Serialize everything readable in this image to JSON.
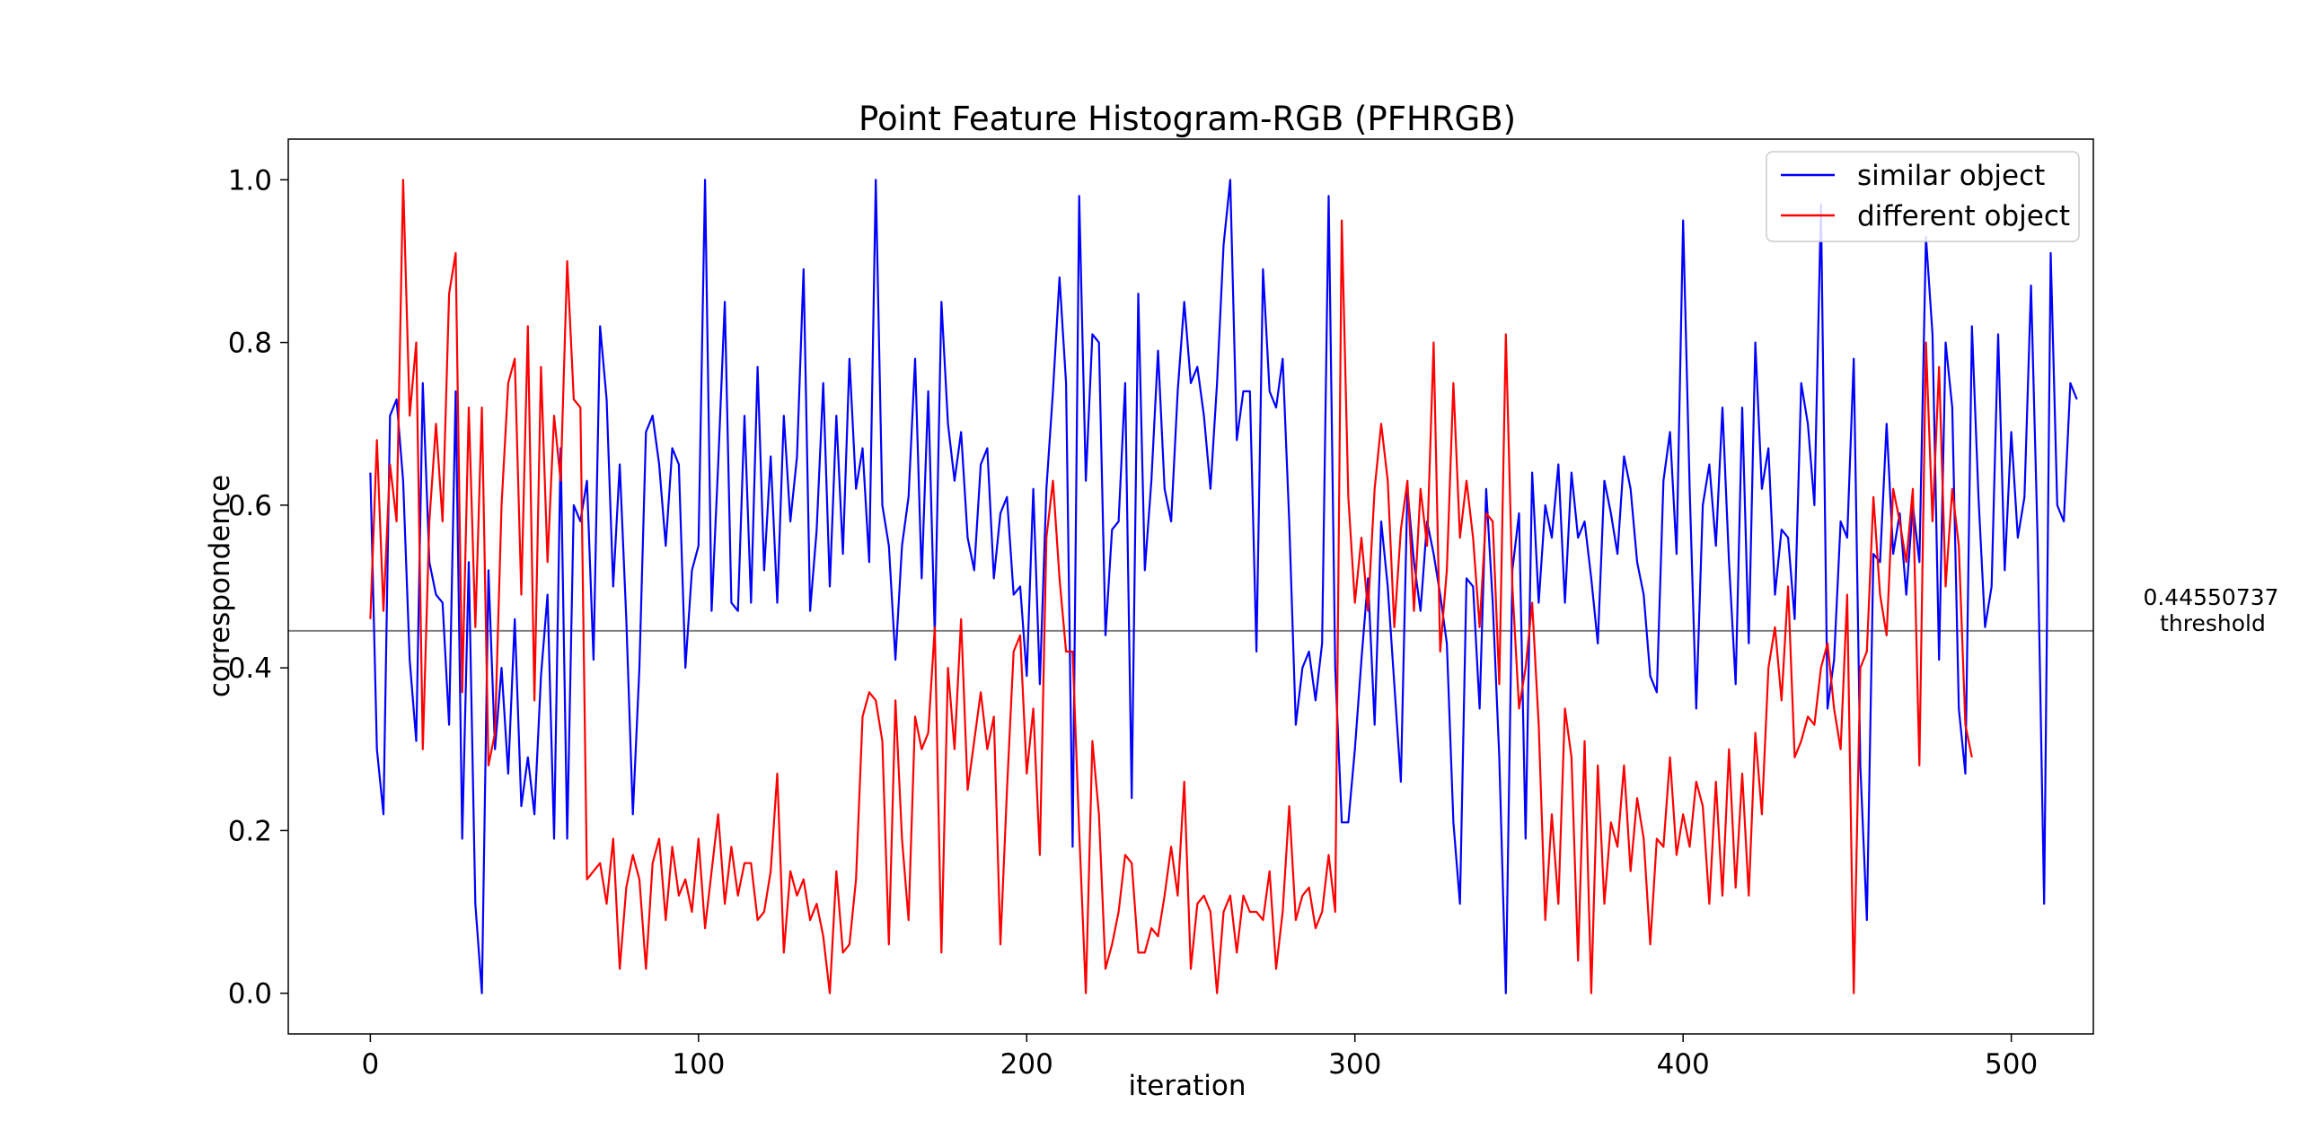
{
  "chart_data": {
    "type": "line",
    "title": "Point Feature Histogram-RGB (PFHRGB)",
    "xlabel": "iteration",
    "ylabel": "correspondence",
    "xlim": [
      -25,
      525
    ],
    "ylim": [
      -0.05,
      1.05
    ],
    "xticks": [
      0,
      100,
      200,
      300,
      400,
      500
    ],
    "yticks": [
      0.0,
      0.2,
      0.4,
      0.6,
      0.8,
      1.0
    ],
    "xtick_labels": [
      "0",
      "100",
      "200",
      "300",
      "400",
      "500"
    ],
    "ytick_labels": [
      "0.0",
      "0.2",
      "0.4",
      "0.6",
      "0.8",
      "1.0"
    ],
    "grid": false,
    "legend": "top-right",
    "threshold": {
      "value": 0.44550737,
      "value_label": "0.44550737",
      "label": "threshold",
      "color": "#808080"
    },
    "series": [
      {
        "name": "similar object",
        "color": "#0000ff",
        "x_start": 0,
        "x_step": 2,
        "values": [
          0.64,
          0.3,
          0.22,
          0.71,
          0.73,
          0.63,
          0.41,
          0.31,
          0.75,
          0.53,
          0.49,
          0.48,
          0.33,
          0.74,
          0.19,
          0.53,
          0.11,
          0.0,
          0.52,
          0.3,
          0.4,
          0.27,
          0.46,
          0.23,
          0.29,
          0.22,
          0.39,
          0.49,
          0.19,
          0.67,
          0.19,
          0.6,
          0.58,
          0.63,
          0.41,
          0.82,
          0.73,
          0.5,
          0.65,
          0.46,
          0.22,
          0.4,
          0.69,
          0.71,
          0.65,
          0.55,
          0.67,
          0.65,
          0.4,
          0.52,
          0.55,
          1.0,
          0.47,
          0.65,
          0.85,
          0.48,
          0.47,
          0.71,
          0.48,
          0.77,
          0.52,
          0.66,
          0.48,
          0.71,
          0.58,
          0.66,
          0.89,
          0.47,
          0.57,
          0.75,
          0.5,
          0.71,
          0.54,
          0.78,
          0.62,
          0.67,
          0.53,
          1.0,
          0.6,
          0.55,
          0.41,
          0.55,
          0.61,
          0.78,
          0.51,
          0.74,
          0.44,
          0.85,
          0.7,
          0.63,
          0.69,
          0.56,
          0.52,
          0.65,
          0.67,
          0.51,
          0.59,
          0.61,
          0.49,
          0.5,
          0.39,
          0.62,
          0.38,
          0.62,
          0.74,
          0.88,
          0.75,
          0.18,
          0.98,
          0.63,
          0.81,
          0.8,
          0.44,
          0.57,
          0.58,
          0.75,
          0.24,
          0.86,
          0.52,
          0.63,
          0.79,
          0.62,
          0.58,
          0.74,
          0.85,
          0.75,
          0.77,
          0.71,
          0.62,
          0.75,
          0.92,
          1.0,
          0.68,
          0.74,
          0.74,
          0.42,
          0.89,
          0.74,
          0.72,
          0.78,
          0.58,
          0.33,
          0.4,
          0.42,
          0.36,
          0.43,
          0.98,
          0.4,
          0.21,
          0.21,
          0.3,
          0.41,
          0.51,
          0.33,
          0.58,
          0.5,
          0.38,
          0.26,
          0.62,
          0.53,
          0.47,
          0.58,
          0.54,
          0.49,
          0.43,
          0.21,
          0.11,
          0.51,
          0.5,
          0.35,
          0.62,
          0.48,
          0.29,
          0.0,
          0.52,
          0.59,
          0.19,
          0.64,
          0.48,
          0.6,
          0.56,
          0.65,
          0.48,
          0.64,
          0.56,
          0.58,
          0.51,
          0.43,
          0.63,
          0.59,
          0.54,
          0.66,
          0.62,
          0.53,
          0.49,
          0.39,
          0.37,
          0.63,
          0.69,
          0.54,
          0.95,
          0.62,
          0.35,
          0.6,
          0.65,
          0.55,
          0.72,
          0.53,
          0.38,
          0.72,
          0.43,
          0.8,
          0.62,
          0.67,
          0.49,
          0.57,
          0.56,
          0.46,
          0.75,
          0.7,
          0.6,
          0.97,
          0.35,
          0.41,
          0.58,
          0.56,
          0.78,
          0.28,
          0.09,
          0.54,
          0.53,
          0.7,
          0.54,
          0.59,
          0.49,
          0.6,
          0.53,
          0.93,
          0.81,
          0.41,
          0.8,
          0.72,
          0.35,
          0.27,
          0.82,
          0.61,
          0.45,
          0.5,
          0.81,
          0.52,
          0.69,
          0.56,
          0.61,
          0.87,
          0.56,
          0.11,
          0.91,
          0.6,
          0.58,
          0.75,
          0.73
        ]
      },
      {
        "name": "different object",
        "color": "#ff0000",
        "x_start": 0,
        "x_step": 2,
        "values": [
          0.46,
          0.68,
          0.47,
          0.65,
          0.58,
          1.0,
          0.71,
          0.8,
          0.3,
          0.58,
          0.7,
          0.58,
          0.86,
          0.91,
          0.37,
          0.72,
          0.45,
          0.72,
          0.28,
          0.32,
          0.6,
          0.75,
          0.78,
          0.49,
          0.82,
          0.36,
          0.77,
          0.53,
          0.71,
          0.63,
          0.9,
          0.73,
          0.72,
          0.14,
          0.15,
          0.16,
          0.11,
          0.19,
          0.03,
          0.13,
          0.17,
          0.14,
          0.03,
          0.16,
          0.19,
          0.09,
          0.18,
          0.12,
          0.14,
          0.1,
          0.19,
          0.08,
          0.15,
          0.22,
          0.11,
          0.18,
          0.12,
          0.16,
          0.16,
          0.09,
          0.1,
          0.15,
          0.27,
          0.05,
          0.15,
          0.12,
          0.14,
          0.09,
          0.11,
          0.07,
          0.0,
          0.15,
          0.05,
          0.06,
          0.14,
          0.34,
          0.37,
          0.36,
          0.31,
          0.06,
          0.36,
          0.19,
          0.09,
          0.34,
          0.3,
          0.32,
          0.45,
          0.05,
          0.4,
          0.3,
          0.46,
          0.25,
          0.31,
          0.37,
          0.3,
          0.34,
          0.06,
          0.25,
          0.42,
          0.44,
          0.27,
          0.35,
          0.17,
          0.56,
          0.63,
          0.51,
          0.42,
          0.42,
          0.2,
          0.0,
          0.31,
          0.22,
          0.03,
          0.06,
          0.1,
          0.17,
          0.16,
          0.05,
          0.05,
          0.08,
          0.07,
          0.12,
          0.18,
          0.12,
          0.26,
          0.03,
          0.11,
          0.12,
          0.1,
          0.0,
          0.1,
          0.12,
          0.05,
          0.12,
          0.1,
          0.1,
          0.09,
          0.15,
          0.03,
          0.1,
          0.23,
          0.09,
          0.12,
          0.13,
          0.08,
          0.1,
          0.17,
          0.1,
          0.95,
          0.61,
          0.48,
          0.56,
          0.47,
          0.62,
          0.7,
          0.63,
          0.45,
          0.57,
          0.63,
          0.47,
          0.62,
          0.55,
          0.8,
          0.42,
          0.52,
          0.75,
          0.56,
          0.63,
          0.56,
          0.45,
          0.59,
          0.58,
          0.38,
          0.81,
          0.5,
          0.35,
          0.4,
          0.48,
          0.33,
          0.09,
          0.22,
          0.11,
          0.35,
          0.29,
          0.04,
          0.31,
          0.0,
          0.28,
          0.11,
          0.21,
          0.18,
          0.28,
          0.15,
          0.24,
          0.19,
          0.06,
          0.19,
          0.18,
          0.29,
          0.17,
          0.22,
          0.18,
          0.26,
          0.23,
          0.11,
          0.26,
          0.12,
          0.3,
          0.13,
          0.27,
          0.12,
          0.32,
          0.22,
          0.4,
          0.45,
          0.36,
          0.5,
          0.29,
          0.31,
          0.34,
          0.33,
          0.4,
          0.43,
          0.35,
          0.3,
          0.49,
          0.0,
          0.4,
          0.42,
          0.61,
          0.49,
          0.44,
          0.62,
          0.58,
          0.53,
          0.62,
          0.28,
          0.8,
          0.58,
          0.77,
          0.5,
          0.62,
          0.55,
          0.33,
          0.29
        ]
      }
    ]
  }
}
